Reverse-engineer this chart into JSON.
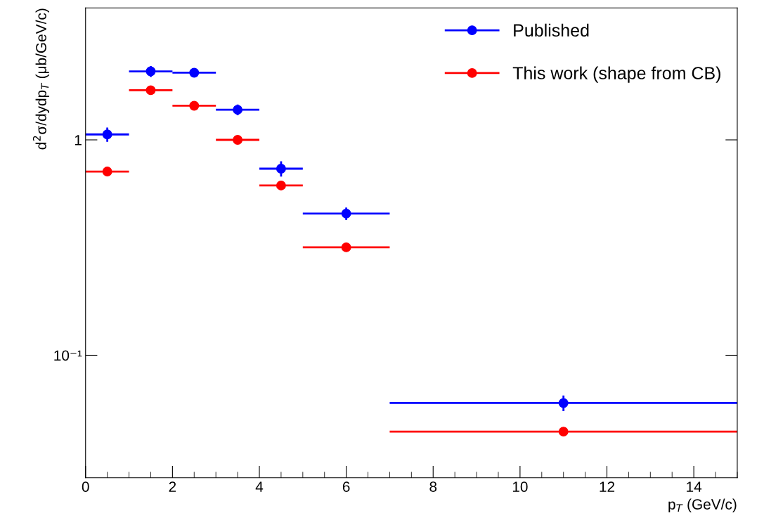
{
  "chart_data": {
    "type": "scatter",
    "xlabel": "p$_{T}$ (GeV/c)",
    "ylabel": "d$^{2}$σ/dydp$_{T}$ (μb/GeV/c)",
    "x": [
      0.5,
      1.5,
      2.5,
      3.5,
      4.5,
      6,
      11
    ],
    "series": [
      {
        "name": "Published",
        "color": "#0000ff",
        "values": [
          1.06,
          2.08,
          2.05,
          1.38,
          0.735,
          0.455,
          0.06
        ],
        "errors": [
          0.08,
          0.12,
          0.1,
          0.08,
          0.06,
          0.03,
          0.005
        ],
        "xerrors": [
          0.5,
          0.5,
          0.5,
          0.5,
          0.5,
          1,
          4
        ]
      },
      {
        "name": "This work (shape from CB)",
        "color": "#ff0000",
        "values": [
          0.713,
          1.7,
          1.44,
          1.0,
          0.614,
          0.317,
          0.0442
        ],
        "xerrors": [
          0.5,
          0.5,
          0.5,
          0.5,
          0.5,
          1,
          4
        ]
      }
    ],
    "log": "y",
    "xlim": [
      0,
      15
    ],
    "ylim": [
      0.027,
      4.1
    ],
    "xticks": [
      0,
      2,
      4,
      6,
      8,
      10,
      12,
      14
    ],
    "yticks": [
      {
        "value": 0.1,
        "label": "10⁻¹"
      },
      1
    ],
    "marker": "circle",
    "legend": "top right",
    "grid": false
  }
}
